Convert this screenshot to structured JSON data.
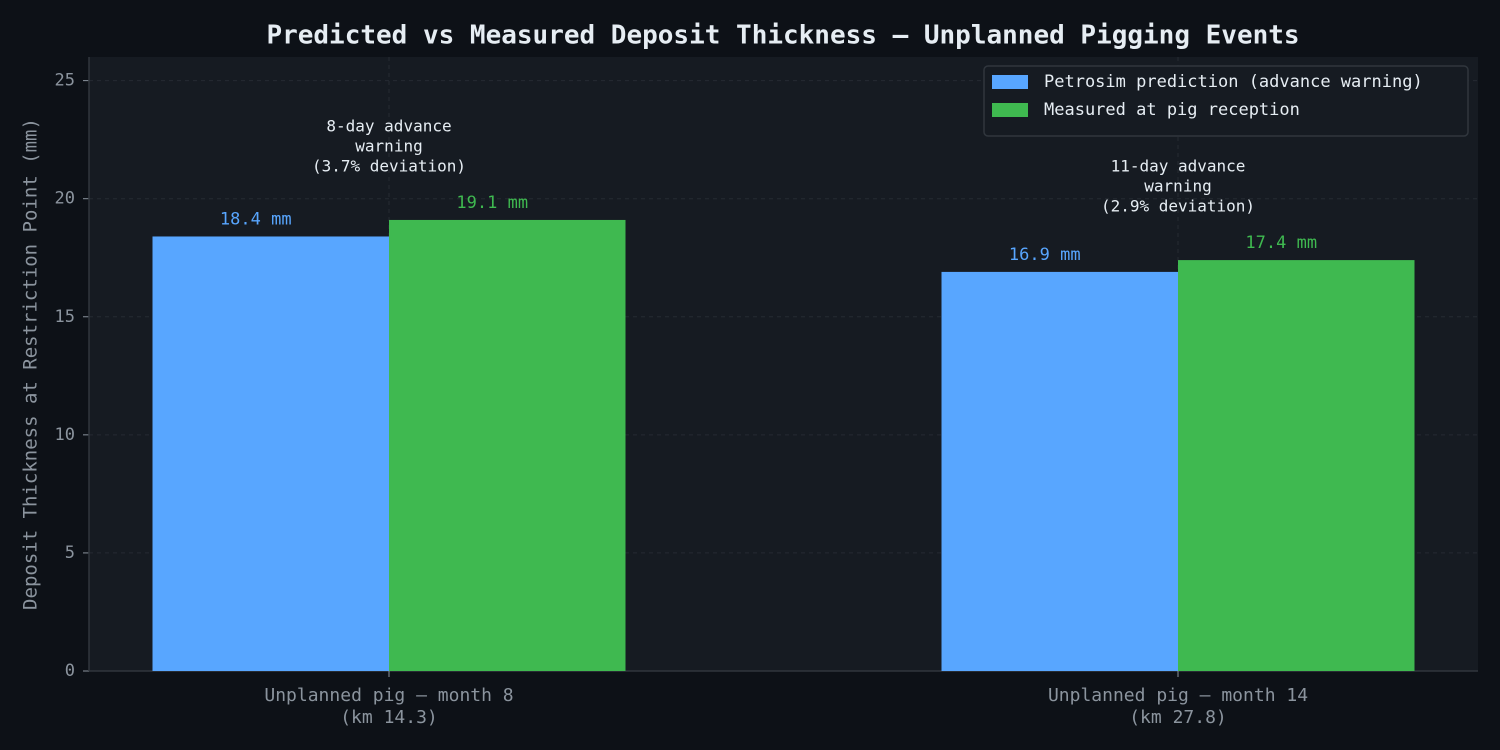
{
  "chart_data": {
    "type": "bar",
    "title": "Predicted vs Measured Deposit Thickness — Unplanned Pigging Events",
    "xlabel": "",
    "ylabel": "Deposit Thickness at Restriction Point (mm)",
    "ylim": [
      0,
      26
    ],
    "yticks": [
      0,
      5,
      10,
      15,
      20,
      25
    ],
    "yticks_labels": [
      "0",
      "5",
      "10",
      "15",
      "20",
      "25"
    ],
    "grid": true,
    "legend_position": "top-right",
    "categories": [
      [
        "Unplanned pig — month 8",
        "(km 14.3)"
      ],
      [
        "Unplanned pig — month 14",
        "(km 27.8)"
      ]
    ],
    "series": [
      {
        "name": "Petrosim prediction (advance warning)",
        "values": [
          18.4,
          16.9
        ],
        "labels": [
          "18.4 mm",
          "16.9 mm"
        ],
        "color": "#58a6ff"
      },
      {
        "name": "Measured at pig reception",
        "values": [
          19.1,
          17.4
        ],
        "labels": [
          "19.1 mm",
          "17.4 mm"
        ],
        "color": "#3fb950"
      }
    ],
    "annotations": [
      [
        "8-day advance",
        "warning",
        "(3.7% deviation)"
      ],
      [
        "11-day advance",
        "warning",
        "(2.9% deviation)"
      ]
    ],
    "colors": {
      "background": "#0d1117",
      "plot_background": "#161b22",
      "grid": "#30363d",
      "axis": "#30363d",
      "tick_text": "#8b949e",
      "title_text": "#e6edf3",
      "annotation_text": "#e6edf3"
    }
  }
}
